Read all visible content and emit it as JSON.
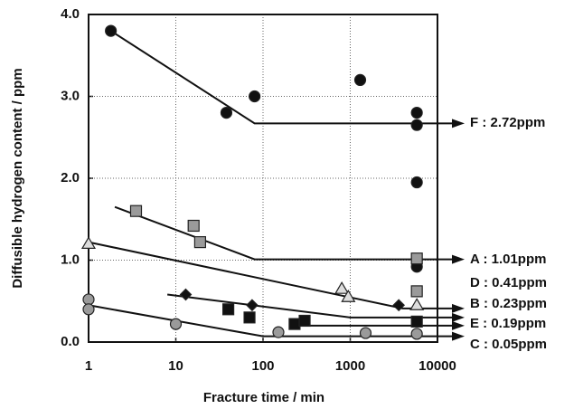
{
  "chart_data": {
    "type": "scatter",
    "xlabel": "Fracture time / min",
    "ylabel": "Diffusible hydrogen content / ppm",
    "xscale": "log",
    "xlim": [
      1,
      10000
    ],
    "xticks": [
      1,
      10,
      100,
      1000,
      10000
    ],
    "ylim": [
      0,
      4
    ],
    "yticks": [
      {
        "value": 0,
        "label": "0.0"
      },
      {
        "value": 1,
        "label": "1.0"
      },
      {
        "value": 2,
        "label": "2.0"
      },
      {
        "value": 3,
        "label": "3.0"
      },
      {
        "value": 4,
        "label": "4.0"
      }
    ],
    "grid": true,
    "series": [
      {
        "name": "F",
        "label": "F : 2.72ppm",
        "marker": "circle",
        "color": "#111111",
        "x": [
          1.8,
          38,
          80,
          1300,
          5800,
          5800,
          5800,
          5800
        ],
        "values": [
          3.8,
          2.8,
          3.0,
          3.2,
          2.8,
          2.65,
          1.95,
          0.92
        ],
        "trend_x": [
          1.8,
          80,
          5800
        ],
        "trend_y": [
          3.8,
          2.67,
          2.67
        ]
      },
      {
        "name": "A",
        "label": "A : 1.01ppm",
        "marker": "square",
        "color": "#9a9a9a",
        "x": [
          3.5,
          16,
          19,
          5800,
          5800
        ],
        "values": [
          1.6,
          1.42,
          1.22,
          1.02,
          0.62
        ],
        "trend_x": [
          2,
          80,
          5800
        ],
        "trend_y": [
          1.65,
          1.01,
          1.01
        ]
      },
      {
        "name": "D",
        "label": "D : 0.41ppm",
        "marker": "diamond",
        "color": "#111111",
        "x": [
          13,
          75,
          3600
        ],
        "values": [
          0.58,
          0.45,
          0.45
        ],
        "trend_x": [
          8,
          1000,
          5800
        ],
        "trend_y": [
          0.58,
          0.3,
          0.3
        ]
      },
      {
        "name": "B",
        "label": "B : 0.23ppm",
        "marker": "triangle",
        "color": "#dddddd",
        "x": [
          1,
          800,
          950,
          5800
        ],
        "values": [
          1.2,
          0.65,
          0.55,
          0.45
        ],
        "trend_x": [
          1,
          4000,
          5800
        ],
        "trend_y": [
          1.22,
          0.41,
          0.41
        ]
      },
      {
        "name": "E",
        "label": "E : 0.19ppm",
        "marker": "square",
        "color": "#111111",
        "x": [
          40,
          70,
          230,
          300,
          5800
        ],
        "values": [
          0.4,
          0.3,
          0.22,
          0.26,
          0.25
        ],
        "trend_x": [
          200,
          5800
        ],
        "trend_y": [
          0.2,
          0.2
        ]
      },
      {
        "name": "C",
        "label": "C : 0.05ppm",
        "marker": "circle",
        "color": "#9a9a9a",
        "x": [
          1,
          1,
          10,
          150,
          1500,
          5800
        ],
        "values": [
          0.52,
          0.4,
          0.22,
          0.12,
          0.11,
          0.1
        ],
        "trend_x": [
          1,
          100,
          5800
        ],
        "trend_y": [
          0.45,
          0.07,
          0.07
        ]
      }
    ]
  }
}
